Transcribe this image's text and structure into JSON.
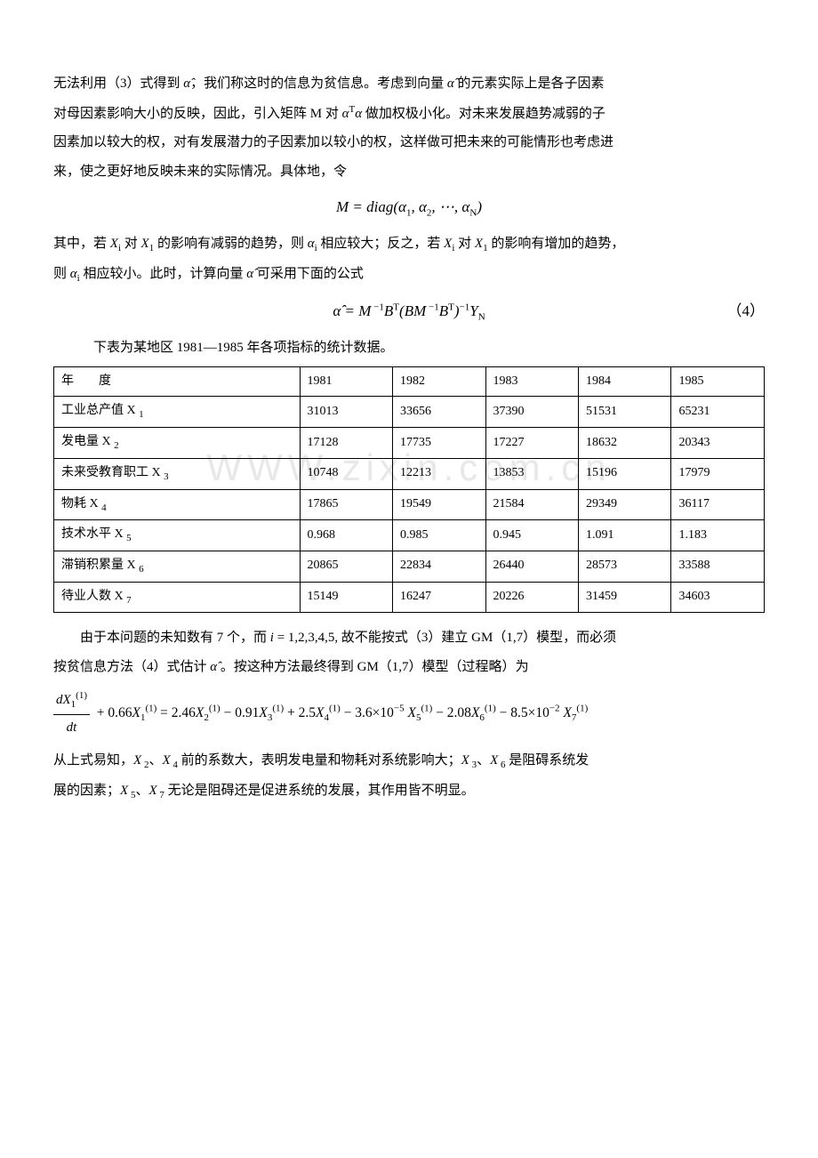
{
  "watermark": "WWW.zixin.com.cn",
  "para1_a": "无法利用（3）式得到 ",
  "para1_b": "，我们称这时的信息为贫信息。考虑到向量 ",
  "para1_c": " 的元素实际上是各子因素",
  "para2_a": "对母因素影响大小的反映，因此，引入矩阵 M 对 ",
  "para2_b": " 做加权极小化。对未来发展趋势减弱的子",
  "para3": "因素加以较大的权，对有发展潜力的子因素加以较小的权，这样做可把未来的可能情形也考虑进",
  "para4": "来，使之更好地反映未来的实际情况。具体地，令",
  "eq1": "M = diag(α₁, α₂, ⋯, α_N)",
  "para5_a": "其中，若 ",
  "para5_b": " 对 ",
  "para5_c": " 的影响有减弱的趋势，则 ",
  "para5_d": " 相应较大；反之，若 ",
  "para5_e": " 对 ",
  "para5_f": " 的影响有增加的趋势，",
  "para6_a": "则 ",
  "para6_b": " 相应较小。此时，计算向量 ",
  "para6_c": " 可采用下面的公式",
  "eq2_num": "（4）",
  "caption": "下表为某地区 1981—1985 年各项指标的统计数据。",
  "table": {
    "header": [
      "年　　度",
      "1981",
      "1982",
      "1983",
      "1984",
      "1985"
    ],
    "rows": [
      {
        "label": "工业总产值 X",
        "sub": "1",
        "vals": [
          "31013",
          "33656",
          "37390",
          "51531",
          "65231"
        ]
      },
      {
        "label": "发电量 X",
        "sub": "2",
        "vals": [
          "17128",
          "17735",
          "17227",
          "18632",
          "20343"
        ]
      },
      {
        "label": "未来受教育职工 X",
        "sub": "3",
        "vals": [
          "10748",
          "12213",
          "13853",
          "15196",
          "17979"
        ]
      },
      {
        "label": "物耗 X",
        "sub": "4",
        "vals": [
          "17865",
          "19549",
          "21584",
          "29349",
          "36117"
        ]
      },
      {
        "label": "技术水平 X",
        "sub": "5",
        "vals": [
          "0.968",
          "0.985",
          "0.945",
          "1.091",
          "1.183"
        ]
      },
      {
        "label": "滞销积累量 X",
        "sub": "6",
        "vals": [
          "20865",
          "22834",
          "26440",
          "28573",
          "33588"
        ]
      },
      {
        "label": "待业人数 X",
        "sub": "7",
        "vals": [
          "15149",
          "16247",
          "20226",
          "31459",
          "34603"
        ]
      }
    ]
  },
  "para7_a": "由于本问题的未知数有 7 个，而 ",
  "para7_b": " 故不能按式（3）建立 GM（1,7）模型，而必须",
  "para8_a": "按贫信息方法（4）式估计 ",
  "para8_b": " 。按这种方法最终得到 GM（1,7）模型（过程略）为",
  "para9_a": "从上式易知，",
  "para9_b": "、",
  "para9_c": " 前的系数大，表明发电量和物耗对系统影响大；",
  "para9_d": "、",
  "para9_e": " 是阻碍系统发",
  "para10_a": "展的因素；",
  "para10_b": "、",
  "para10_c": " 无论是阻碍还是促进系统的发展，其作用皆不明显。",
  "symbols": {
    "alpha_hat": "α̂",
    "alpha_T_alpha": "αᵀα",
    "Xi": "X_i",
    "X1": "X_1",
    "alpha_i": "α_i",
    "i_eq": "i = 1,2,3,4,5,"
  }
}
